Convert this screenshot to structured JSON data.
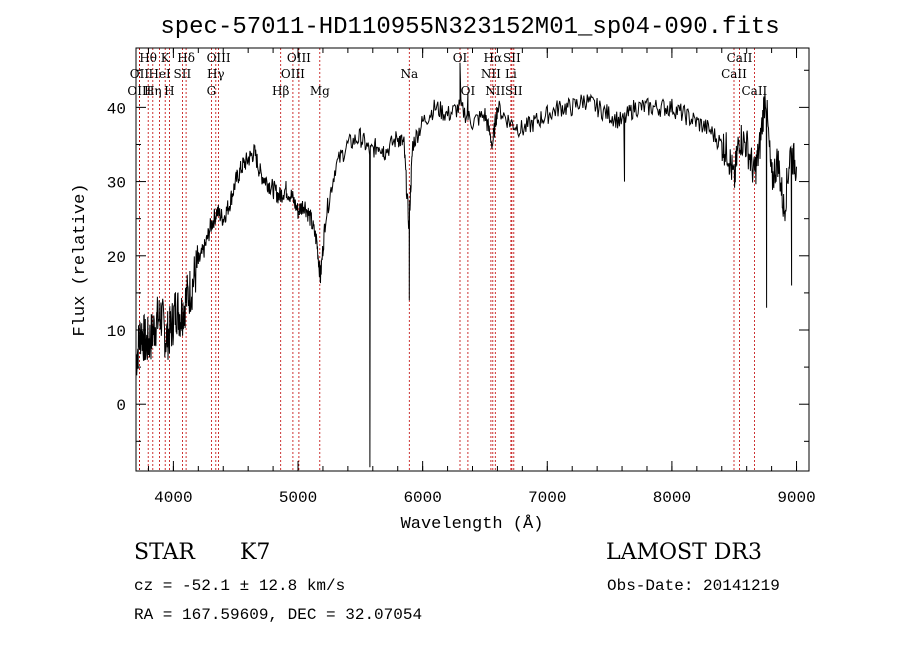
{
  "chart_data": {
    "type": "line",
    "title": "spec-57011-HD110955N323152M01_sp04-090.fits",
    "xlabel": "Wavelength (Å)",
    "ylabel": "Flux (relative)",
    "xlim": [
      3700,
      9100
    ],
    "ylim": [
      -9,
      48
    ],
    "x_ticks": [
      "4000",
      "5000",
      "6000",
      "7000",
      "8000",
      "9000"
    ],
    "y_ticks": [
      "0",
      "10",
      "20",
      "30",
      "40"
    ],
    "grid": false,
    "series": [
      {
        "points": [
          [
            3700,
            6
          ],
          [
            3740,
            10
          ],
          [
            3780,
            8
          ],
          [
            3820,
            9
          ],
          [
            3860,
            11
          ],
          [
            3900,
            12
          ],
          [
            3940,
            9
          ],
          [
            3980,
            10
          ],
          [
            4020,
            13
          ],
          [
            4060,
            12
          ],
          [
            4100,
            14
          ],
          [
            4150,
            16
          ],
          [
            4200,
            19
          ],
          [
            4250,
            21
          ],
          [
            4300,
            24
          ],
          [
            4350,
            26
          ],
          [
            4400,
            25
          ],
          [
            4450,
            27
          ],
          [
            4500,
            30
          ],
          [
            4550,
            32
          ],
          [
            4600,
            33
          ],
          [
            4650,
            34
          ],
          [
            4700,
            31
          ],
          [
            4750,
            30
          ],
          [
            4800,
            29
          ],
          [
            4850,
            28
          ],
          [
            4900,
            29
          ],
          [
            4950,
            28
          ],
          [
            5000,
            26
          ],
          [
            5050,
            27
          ],
          [
            5100,
            25
          ],
          [
            5150,
            22
          ],
          [
            5180,
            17
          ],
          [
            5220,
            25
          ],
          [
            5300,
            32
          ],
          [
            5400,
            35
          ],
          [
            5500,
            36
          ],
          [
            5580,
            34
          ],
          [
            5650,
            35
          ],
          [
            5700,
            34
          ],
          [
            5800,
            36
          ],
          [
            5850,
            35
          ],
          [
            5890,
            24
          ],
          [
            5920,
            35
          ],
          [
            6000,
            38
          ],
          [
            6100,
            40
          ],
          [
            6200,
            39
          ],
          [
            6300,
            40
          ],
          [
            6400,
            38
          ],
          [
            6500,
            39
          ],
          [
            6560,
            35
          ],
          [
            6600,
            40
          ],
          [
            6700,
            38
          ],
          [
            6800,
            37
          ],
          [
            6900,
            38
          ],
          [
            7000,
            39
          ],
          [
            7100,
            40
          ],
          [
            7200,
            40
          ],
          [
            7300,
            41
          ],
          [
            7400,
            40
          ],
          [
            7500,
            39
          ],
          [
            7600,
            38
          ],
          [
            7700,
            40
          ],
          [
            7800,
            40
          ],
          [
            7900,
            40
          ],
          [
            8000,
            40
          ],
          [
            8100,
            39
          ],
          [
            8200,
            38
          ],
          [
            8300,
            37
          ],
          [
            8400,
            35
          ],
          [
            8450,
            34
          ],
          [
            8500,
            30
          ],
          [
            8540,
            36
          ],
          [
            8600,
            35
          ],
          [
            8660,
            31
          ],
          [
            8700,
            34
          ],
          [
            8750,
            42
          ],
          [
            8800,
            30
          ],
          [
            8850,
            33
          ],
          [
            8900,
            26
          ],
          [
            8950,
            34
          ],
          [
            9000,
            32
          ]
        ]
      }
    ],
    "spikes": [
      [
        5577,
        -8.5
      ],
      [
        5893,
        14
      ],
      [
        6300,
        46
      ],
      [
        6363,
        42
      ],
      [
        7620,
        30
      ],
      [
        8760,
        13
      ],
      [
        8960,
        16
      ],
      [
        9000,
        0
      ]
    ],
    "line_markers": [
      {
        "label": "Hθ",
        "x": 3798,
        "row": 1
      },
      {
        "label": "OII",
        "x": 3727,
        "row": 2
      },
      {
        "label": "OIII",
        "x": 3727,
        "row": 3
      },
      {
        "label": "K",
        "x": 3934,
        "row": 1
      },
      {
        "label": "HeI",
        "x": 3889,
        "row": 2
      },
      {
        "label": "Hη",
        "x": 3835,
        "row": 3
      },
      {
        "label": "H",
        "x": 3968,
        "row": 3
      },
      {
        "label": "Hδ",
        "x": 4102,
        "row": 1
      },
      {
        "label": "SII",
        "x": 4072,
        "row": 2
      },
      {
        "label": "OIII",
        "x": 4363,
        "row": 1
      },
      {
        "label": "Hγ",
        "x": 4340,
        "row": 2
      },
      {
        "label": "G",
        "x": 4305,
        "row": 3
      },
      {
        "label": "OIII",
        "x": 5007,
        "row": 1
      },
      {
        "label": "OIII",
        "x": 4959,
        "row": 2
      },
      {
        "label": "Hβ",
        "x": 4861,
        "row": 3
      },
      {
        "label": "Mg",
        "x": 5175,
        "row": 3
      },
      {
        "label": "Na",
        "x": 5893,
        "row": 2
      },
      {
        "label": "OI",
        "x": 6300,
        "row": 1
      },
      {
        "label": "OI",
        "x": 6363,
        "row": 3
      },
      {
        "label": "Hα",
        "x": 6563,
        "row": 1
      },
      {
        "label": "SII",
        "x": 6716,
        "row": 1
      },
      {
        "label": "NII",
        "x": 6548,
        "row": 2
      },
      {
        "label": "Li",
        "x": 6708,
        "row": 2
      },
      {
        "label": "NII",
        "x": 6583,
        "row": 3
      },
      {
        "label": "SII",
        "x": 6731,
        "row": 3
      },
      {
        "label": "CaII",
        "x": 8542,
        "row": 1
      },
      {
        "label": "CaII",
        "x": 8498,
        "row": 2
      },
      {
        "label": "CaII",
        "x": 8662,
        "row": 3
      }
    ],
    "marker_color": "#c00000",
    "line_color": "#000000"
  },
  "info": {
    "class": "STAR",
    "subclass": "K7",
    "cz": "cz = -52.1 ± 12.8 km/s",
    "coords": "RA = 167.59609, DEC =  32.07054",
    "survey": "LAMOST DR3",
    "obs_date": "Obs-Date: 20141219"
  }
}
